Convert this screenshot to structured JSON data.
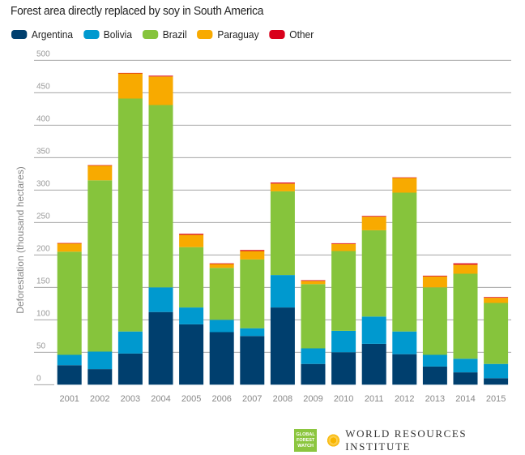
{
  "chart_data": {
    "type": "bar",
    "stacked": true,
    "title": "Forest area directly replaced by soy in South America",
    "xlabel": "",
    "ylabel": "Deforestation (thousand hectares)",
    "ylim": [
      0,
      500
    ],
    "yticks": [
      "0",
      "50",
      "100",
      "150",
      "200",
      "250",
      "300",
      "350",
      "400",
      "450",
      "500"
    ],
    "grid": true,
    "legend_position": "top-left",
    "categories": [
      "2001",
      "2002",
      "2003",
      "2004",
      "2005",
      "2006",
      "2007",
      "2008",
      "2009",
      "2010",
      "2011",
      "2012",
      "2013",
      "2014",
      "2015"
    ],
    "series": [
      {
        "name": "Argentina",
        "color": "#003f6e",
        "values": [
          30,
          24,
          48,
          112,
          93,
          81,
          75,
          119,
          32,
          50,
          63,
          47,
          28,
          19,
          10
        ]
      },
      {
        "name": "Bolivia",
        "color": "#0099cf",
        "values": [
          16,
          27,
          34,
          38,
          26,
          19,
          12,
          50,
          24,
          33,
          42,
          35,
          18,
          21,
          22
        ]
      },
      {
        "name": "Brazil",
        "color": "#86c43c",
        "values": [
          159,
          264,
          359,
          281,
          93,
          80,
          106,
          129,
          99,
          123,
          133,
          214,
          104,
          131,
          94
        ]
      },
      {
        "name": "Paraguay",
        "color": "#f8aa00",
        "values": [
          13,
          23,
          39,
          44,
          19,
          6,
          13,
          12,
          5,
          11,
          21,
          23,
          17,
          14,
          8
        ]
      },
      {
        "name": "Other",
        "color": "#d9001b",
        "values": [
          0.3,
          0.3,
          0.5,
          1.2,
          1.5,
          1,
          1.5,
          1.5,
          1,
          1,
          1,
          0.5,
          1,
          2,
          1
        ]
      }
    ]
  },
  "logos": {
    "gfw": [
      "GLOBAL",
      "FOREST",
      "WATCH"
    ],
    "wri": "WORLD RESOURCES INSTITUTE"
  }
}
